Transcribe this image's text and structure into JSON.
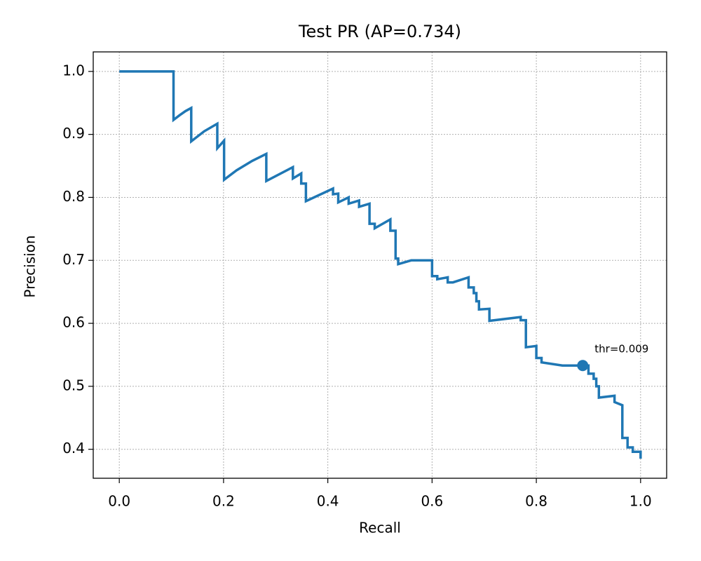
{
  "chart_data": {
    "type": "line",
    "title": "Test PR (AP=0.734)",
    "x_label": "Recall",
    "y_label": "Precision",
    "xlim": [
      -0.05,
      1.05
    ],
    "ylim": [
      0.354,
      1.031
    ],
    "xticks": [
      {
        "value": 0,
        "label": "0.0"
      },
      0.2,
      0.4,
      0.6,
      0.8,
      {
        "value": 1,
        "label": "1.0"
      }
    ],
    "yticks": [
      0.4,
      0.5,
      0.6,
      0.7,
      0.8,
      0.9,
      {
        "value": 1,
        "label": "1.0"
      }
    ],
    "grid": true,
    "series": [
      {
        "color": "#1f77b4",
        "x": [
          0,
          0.104,
          0.104,
          0.115,
          0.127,
          0.138,
          0.138,
          0.163,
          0.188,
          0.188,
          0.201,
          0.201,
          0.225,
          0.255,
          0.282,
          0.282,
          0.333,
          0.333,
          0.349,
          0.349,
          0.358,
          0.358,
          0.41,
          0.41,
          0.42,
          0.42,
          0.44,
          0.44,
          0.46,
          0.46,
          0.48,
          0.48,
          0.49,
          0.49,
          0.52,
          0.52,
          0.53,
          0.53,
          0.535,
          0.535,
          0.56,
          0.58,
          0.6,
          0.6,
          0.61,
          0.61,
          0.63,
          0.63,
          0.64,
          0.67,
          0.67,
          0.68,
          0.68,
          0.685,
          0.685,
          0.69,
          0.69,
          0.71,
          0.71,
          0.77,
          0.77,
          0.78,
          0.78,
          0.8,
          0.8,
          0.81,
          0.81,
          0.85,
          0.89,
          0.9,
          0.9,
          0.91,
          0.91,
          0.915,
          0.915,
          0.92,
          0.92,
          0.95,
          0.95,
          0.965,
          0.965,
          0.975,
          0.975,
          0.985,
          0.985,
          1.0,
          1.0
        ],
        "values": [
          1.0,
          1.0,
          0.923,
          0.93,
          0.937,
          0.942,
          0.889,
          0.905,
          0.917,
          0.878,
          0.89,
          0.828,
          0.843,
          0.858,
          0.869,
          0.826,
          0.848,
          0.83,
          0.838,
          0.822,
          0.822,
          0.794,
          0.814,
          0.805,
          0.806,
          0.792,
          0.8,
          0.79,
          0.795,
          0.785,
          0.79,
          0.758,
          0.758,
          0.751,
          0.765,
          0.747,
          0.747,
          0.703,
          0.703,
          0.694,
          0.7,
          0.7,
          0.7,
          0.675,
          0.675,
          0.67,
          0.673,
          0.665,
          0.665,
          0.673,
          0.657,
          0.657,
          0.648,
          0.648,
          0.635,
          0.635,
          0.622,
          0.623,
          0.604,
          0.61,
          0.605,
          0.605,
          0.562,
          0.564,
          0.545,
          0.545,
          0.538,
          0.533,
          0.533,
          0.533,
          0.52,
          0.52,
          0.512,
          0.512,
          0.5,
          0.5,
          0.482,
          0.485,
          0.475,
          0.47,
          0.418,
          0.418,
          0.403,
          0.403,
          0.396,
          0.396,
          0.385
        ]
      }
    ],
    "threshold_point": {
      "x": 0.889,
      "y": 0.533,
      "label": "thr=0.009"
    }
  }
}
